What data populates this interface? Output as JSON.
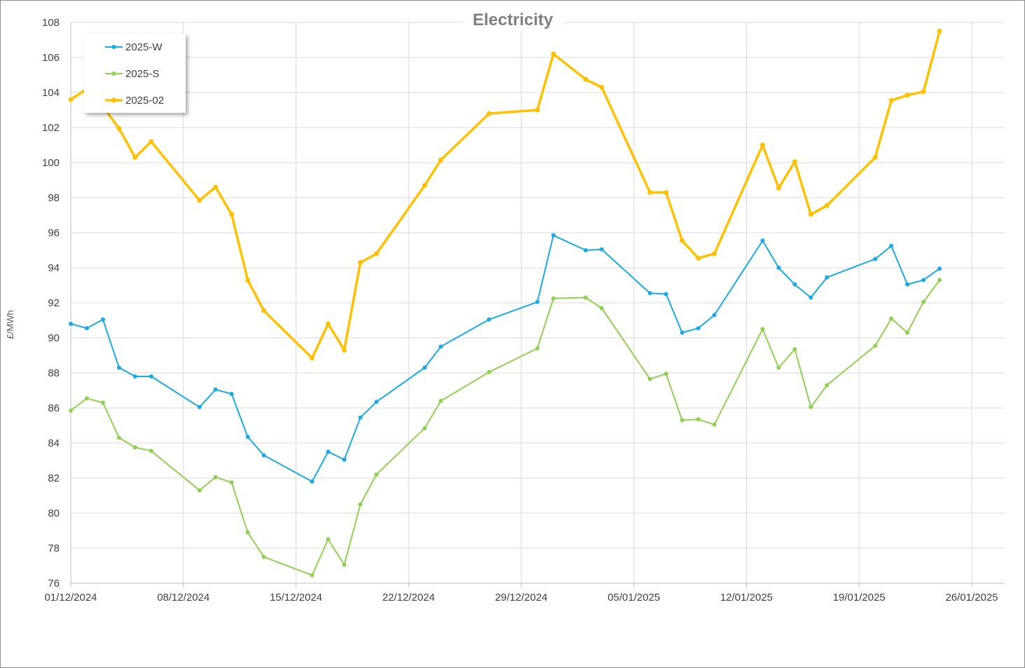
{
  "chart_data": {
    "type": "line",
    "title": "Electricity",
    "xlabel": "",
    "ylabel": "£/MWh",
    "ylim": [
      76,
      108
    ],
    "y_ticks": [
      "76",
      "78",
      "80",
      "82",
      "84",
      "86",
      "88",
      "90",
      "92",
      "94",
      "96",
      "98",
      "100",
      "102",
      "104",
      "106",
      "108"
    ],
    "x_range": [
      "2024-12-01",
      "2025-01-26"
    ],
    "x_ticks": [
      {
        "date": "2024-12-01",
        "label": "01/12/2024"
      },
      {
        "date": "2024-12-08",
        "label": "08/12/2024"
      },
      {
        "date": "2024-12-15",
        "label": "15/12/2024"
      },
      {
        "date": "2024-12-22",
        "label": "22/12/2024"
      },
      {
        "date": "2024-12-29",
        "label": "29/12/2024"
      },
      {
        "date": "2025-01-05",
        "label": "05/01/2025"
      },
      {
        "date": "2025-01-12",
        "label": "12/01/2025"
      },
      {
        "date": "2025-01-19",
        "label": "19/01/2025"
      },
      {
        "date": "2025-01-26",
        "label": "26/01/2025"
      }
    ],
    "grid": true,
    "legend": "top-left",
    "x": [
      "2024-12-01",
      "2024-12-02",
      "2024-12-03",
      "2024-12-04",
      "2024-12-05",
      "2024-12-06",
      "2024-12-09",
      "2024-12-10",
      "2024-12-11",
      "2024-12-12",
      "2024-12-13",
      "2024-12-16",
      "2024-12-17",
      "2024-12-18",
      "2024-12-19",
      "2024-12-20",
      "2024-12-23",
      "2024-12-24",
      "2024-12-27",
      "2024-12-30",
      "2024-12-31",
      "2025-01-02",
      "2025-01-03",
      "2025-01-06",
      "2025-01-07",
      "2025-01-08",
      "2025-01-09",
      "2025-01-10",
      "2025-01-13",
      "2025-01-14",
      "2025-01-15",
      "2025-01-16",
      "2025-01-17",
      "2025-01-20",
      "2025-01-21",
      "2025-01-22",
      "2025-01-23",
      "2025-01-24"
    ],
    "series": [
      {
        "name": "2025-W",
        "color": "#18aae6",
        "values": [
          90.8,
          90.55,
          91.05,
          88.3,
          87.8,
          87.8,
          86.05,
          87.05,
          86.8,
          84.35,
          83.3,
          81.8,
          83.5,
          83.05,
          85.45,
          86.35,
          88.3,
          89.5,
          91.05,
          92.05,
          95.85,
          95.0,
          95.05,
          92.55,
          92.5,
          90.3,
          90.55,
          91.3,
          95.55,
          94.0,
          93.05,
          92.3,
          93.45,
          94.5,
          95.25,
          93.05,
          93.3,
          93.95
        ]
      },
      {
        "name": "2025-S",
        "color": "#8fd14f",
        "values": [
          85.85,
          86.55,
          86.3,
          84.3,
          83.75,
          83.55,
          81.3,
          82.05,
          81.75,
          78.9,
          77.5,
          76.45,
          78.5,
          77.05,
          80.5,
          82.2,
          84.85,
          86.4,
          88.05,
          89.4,
          92.25,
          92.3,
          91.7,
          87.65,
          87.95,
          85.3,
          85.35,
          85.05,
          90.5,
          88.3,
          89.35,
          86.05,
          87.3,
          89.55,
          91.1,
          90.3,
          92.05,
          93.3
        ]
      },
      {
        "name": "2025-02",
        "color": "#ffc000",
        "values": [
          103.6,
          104.2,
          103.2,
          101.95,
          100.3,
          101.2,
          97.85,
          98.6,
          97.05,
          93.3,
          91.55,
          88.85,
          90.8,
          89.3,
          94.3,
          94.8,
          98.7,
          100.15,
          102.8,
          103.0,
          106.2,
          104.75,
          104.3,
          98.3,
          98.3,
          95.55,
          94.55,
          94.8,
          101.0,
          98.55,
          100.05,
          97.05,
          97.55,
          100.3,
          103.55,
          103.85,
          104.05,
          107.5
        ]
      }
    ]
  }
}
